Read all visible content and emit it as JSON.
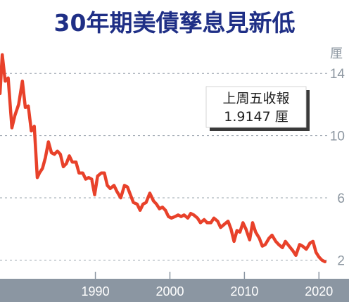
{
  "chart_data": {
    "type": "line",
    "title": "30年期美債孳息見新低",
    "ylabel": "厘",
    "xlabel": "",
    "xlim": [
      1977.2,
      2021.2
    ],
    "ylim": [
      0.8,
      16.0
    ],
    "yticks": [
      14,
      10,
      6,
      2
    ],
    "xticks": [
      1990,
      2000,
      2010,
      2020
    ],
    "grid": true,
    "series_color": "#e8412a",
    "annotation": {
      "line1": "上周五收報",
      "line2": "1.9147 厘"
    },
    "series": [
      {
        "x": [
          1977.2,
          1977.5,
          1977.9,
          1978.3,
          1978.8,
          1979.2,
          1979.7,
          1980.2,
          1980.6,
          1981.0,
          1981.4,
          1981.8,
          1982.2,
          1982.5,
          1982.9,
          1983.3,
          1983.7,
          1984.1,
          1984.5,
          1984.9,
          1985.3,
          1985.7,
          1986.1,
          1986.5,
          1986.9,
          1987.4,
          1987.8,
          1988.3,
          1988.7,
          1989.1,
          1989.5,
          1989.9,
          1990.3,
          1990.8,
          1991.2,
          1991.6,
          1992.0,
          1992.5,
          1992.9,
          1993.4,
          1993.9,
          1994.3,
          1994.7,
          1995.1,
          1995.6,
          1996.0,
          1996.4,
          1996.8,
          1997.3,
          1997.8,
          1998.2,
          1998.6,
          1999.0,
          1999.4,
          1999.8,
          2000.2,
          2000.7,
          2001.1,
          2001.5,
          2001.9,
          2002.4,
          2002.8,
          2003.2,
          2003.7,
          2004.1,
          2004.6,
          2005.0,
          2005.5,
          2005.9,
          2006.4,
          2006.8,
          2007.3,
          2007.8,
          2008.2,
          2008.6,
          2009.0,
          2009.4,
          2009.8,
          2010.2,
          2010.7,
          2011.1,
          2011.5,
          2012.0,
          2012.4,
          2012.8,
          2013.3,
          2013.7,
          2014.2,
          2014.6,
          2015.1,
          2015.5,
          2016.0,
          2016.5,
          2016.9,
          2017.4,
          2017.8,
          2018.3,
          2018.8,
          2019.2,
          2019.6,
          2020.0,
          2020.4,
          2020.8
        ],
        "y": [
          12.7,
          15.2,
          13.5,
          13.7,
          10.5,
          11.3,
          12.0,
          13.5,
          11.8,
          11.9,
          10.3,
          10.6,
          7.3,
          7.6,
          7.9,
          8.6,
          9.6,
          8.9,
          8.8,
          9.0,
          8.8,
          8.0,
          8.2,
          8.7,
          8.3,
          8.3,
          7.6,
          7.6,
          7.2,
          7.3,
          7.2,
          6.2,
          7.4,
          7.6,
          7.6,
          6.8,
          6.6,
          6.8,
          6.4,
          6.0,
          6.8,
          6.7,
          6.2,
          5.7,
          5.6,
          5.2,
          5.6,
          5.7,
          6.3,
          5.8,
          5.6,
          5.3,
          5.4,
          5.2,
          4.8,
          4.7,
          4.8,
          4.9,
          4.8,
          4.9,
          4.7,
          5.0,
          4.9,
          4.7,
          4.4,
          4.6,
          4.4,
          4.4,
          4.7,
          4.5,
          4.1,
          4.3,
          4.5,
          4.0,
          3.2,
          3.9,
          3.8,
          4.4,
          4.0,
          3.3,
          4.4,
          3.8,
          3.4,
          2.9,
          3.0,
          3.4,
          3.6,
          3.2,
          3.0,
          2.8,
          3.2,
          2.9,
          2.6,
          2.3,
          3.0,
          2.9,
          2.7,
          3.1,
          3.2,
          2.5,
          2.2,
          2.0,
          1.9
        ]
      }
    ]
  }
}
